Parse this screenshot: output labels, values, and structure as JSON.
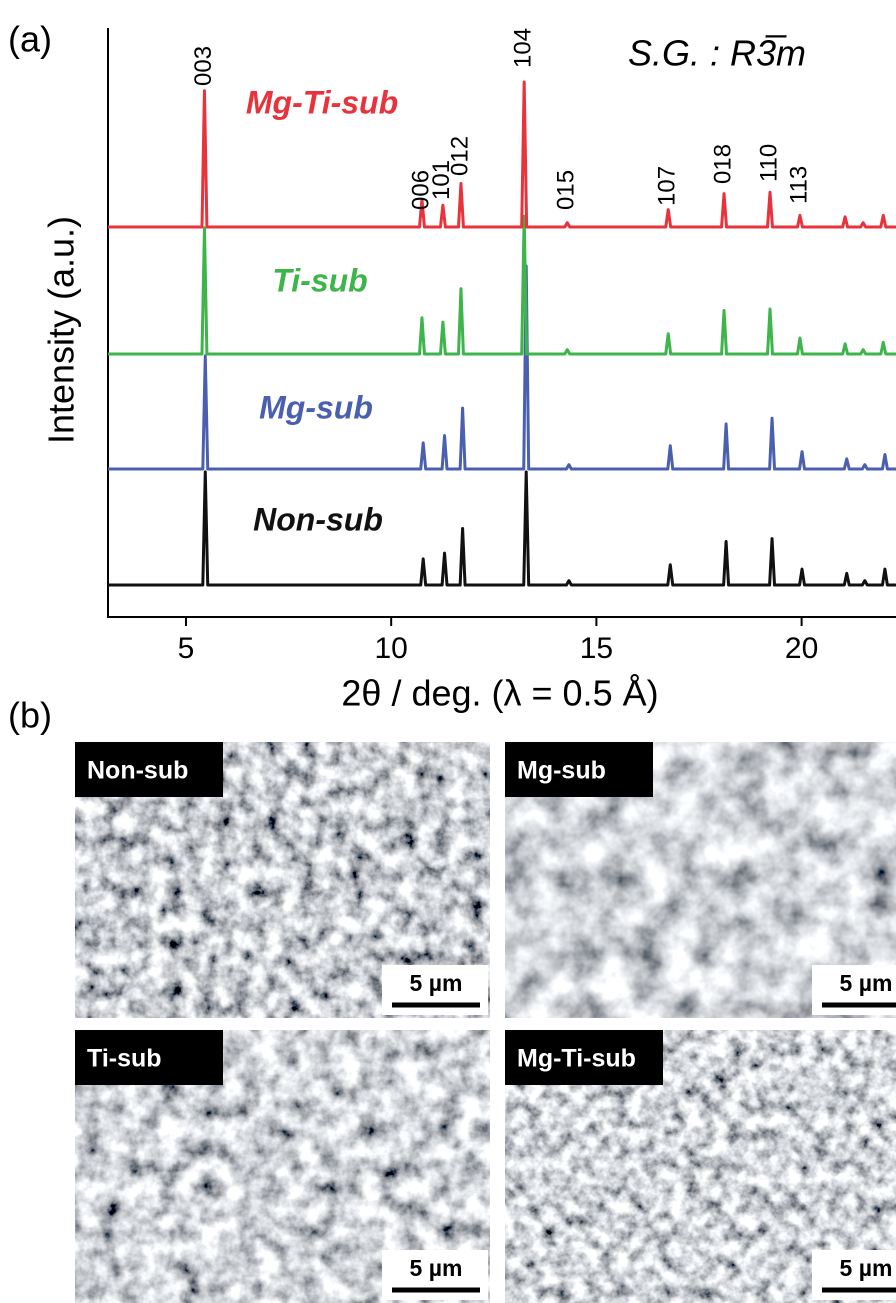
{
  "chart_data": {
    "type": "line",
    "xlabel": "2θ / deg. (λ = 0.5 Å)",
    "ylabel": "Intensity (a.u.)",
    "annotation": "S.G. : R3̅m",
    "xlim": [
      3.1,
      22.3
    ],
    "xticks": [
      5,
      10,
      15,
      20
    ],
    "peak_labels": [
      {
        "text": "003",
        "x": 5.45
      },
      {
        "text": "006",
        "x": 10.75
      },
      {
        "text": "101",
        "x": 11.26
      },
      {
        "text": "012",
        "x": 11.7
      },
      {
        "text": "104",
        "x": 13.24
      },
      {
        "text": "015",
        "x": 14.29
      },
      {
        "text": "107",
        "x": 16.75
      },
      {
        "text": "018",
        "x": 18.11
      },
      {
        "text": "110",
        "x": 19.23
      },
      {
        "text": "113",
        "x": 19.96
      }
    ],
    "series": [
      {
        "name": "Mg-Ti-sub",
        "color": "#e8323c",
        "x": [
          3.1,
          5.39,
          5.45,
          5.51,
          10.69,
          10.75,
          10.81,
          11.2,
          11.26,
          11.32,
          11.64,
          11.7,
          11.76,
          13.18,
          13.24,
          13.3,
          14.23,
          14.29,
          14.35,
          16.69,
          16.75,
          16.81,
          18.05,
          18.11,
          18.17,
          19.17,
          19.23,
          19.29,
          19.9,
          19.96,
          20.02,
          21,
          21.06,
          21.12,
          21.44,
          21.5,
          21.56,
          21.93,
          21.99,
          22.05,
          22.3
        ],
        "values": [
          0,
          0,
          94,
          0,
          0,
          19,
          0,
          0,
          15,
          0,
          0,
          30,
          0,
          0,
          100,
          0,
          0,
          3,
          0,
          0,
          12,
          0,
          0,
          23,
          0,
          0,
          24,
          0,
          0,
          8,
          0,
          0,
          7,
          0,
          0,
          3,
          0,
          0,
          8,
          0,
          0
        ]
      },
      {
        "name": "Ti-sub",
        "color": "#3db54a",
        "x": [
          3.1,
          5.39,
          5.45,
          5.51,
          10.69,
          10.75,
          10.81,
          11.2,
          11.26,
          11.32,
          11.64,
          11.7,
          11.76,
          13.18,
          13.24,
          13.3,
          14.23,
          14.29,
          14.35,
          16.69,
          16.75,
          16.81,
          18.05,
          18.11,
          18.17,
          19.17,
          19.23,
          19.29,
          19.9,
          19.96,
          20.02,
          21,
          21.06,
          21.12,
          21.44,
          21.5,
          21.56,
          21.93,
          21.99,
          22.05,
          22.3
        ],
        "values": [
          0,
          0,
          87,
          0,
          0,
          25,
          0,
          0,
          22,
          0,
          0,
          45,
          0,
          0,
          95,
          0,
          0,
          3,
          0,
          0,
          14,
          0,
          0,
          30,
          0,
          0,
          31,
          0,
          0,
          11,
          0,
          0,
          7,
          0,
          0,
          3,
          0,
          0,
          8,
          0,
          0
        ]
      },
      {
        "name": "Mg-sub",
        "color": "#4a5fb0",
        "x": [
          3.1,
          5.41,
          5.47,
          5.53,
          10.72,
          10.78,
          10.84,
          11.24,
          11.3,
          11.36,
          11.68,
          11.74,
          11.8,
          13.23,
          13.29,
          13.35,
          14.27,
          14.33,
          14.39,
          16.74,
          16.8,
          16.86,
          18.1,
          18.16,
          18.22,
          19.22,
          19.28,
          19.34,
          19.95,
          20.01,
          20.07,
          21.04,
          21.1,
          21.16,
          21.48,
          21.54,
          21.6,
          21.97,
          22.03,
          22.09,
          22.3
        ],
        "values": [
          0,
          0,
          78,
          0,
          0,
          18,
          0,
          0,
          23,
          0,
          0,
          42,
          0,
          0,
          140,
          0,
          0,
          3,
          0,
          0,
          16,
          0,
          0,
          31,
          0,
          0,
          35,
          0,
          0,
          12,
          0,
          0,
          7,
          0,
          0,
          3,
          0,
          0,
          10,
          0,
          0
        ]
      },
      {
        "name": "Non-sub",
        "color": "#111111",
        "x": [
          3.1,
          5.41,
          5.47,
          5.53,
          10.72,
          10.78,
          10.84,
          11.24,
          11.3,
          11.36,
          11.68,
          11.74,
          11.8,
          13.23,
          13.29,
          13.35,
          14.27,
          14.33,
          14.39,
          16.74,
          16.8,
          16.86,
          18.1,
          18.16,
          18.22,
          19.22,
          19.28,
          19.34,
          19.95,
          20.01,
          20.07,
          21.04,
          21.1,
          21.16,
          21.48,
          21.54,
          21.6,
          21.97,
          22.03,
          22.09,
          22.3
        ],
        "values": [
          0,
          0,
          78,
          0,
          0,
          18,
          0,
          0,
          22,
          0,
          0,
          39,
          0,
          0,
          78,
          0,
          0,
          3,
          0,
          0,
          14,
          0,
          0,
          30,
          0,
          0,
          32,
          0,
          0,
          11,
          0,
          0,
          8,
          0,
          0,
          3,
          0,
          0,
          11,
          0,
          0
        ]
      }
    ]
  },
  "panel_labels": [
    "(a)",
    "(b)"
  ],
  "sem_images": [
    {
      "label": "Non-sub",
      "scale_bar": "5 µm"
    },
    {
      "label": "Mg-sub",
      "scale_bar": "5 µm"
    },
    {
      "label": "Ti-sub",
      "scale_bar": "5 µm"
    },
    {
      "label": "Mg-Ti-sub",
      "scale_bar": "5 µm"
    }
  ]
}
